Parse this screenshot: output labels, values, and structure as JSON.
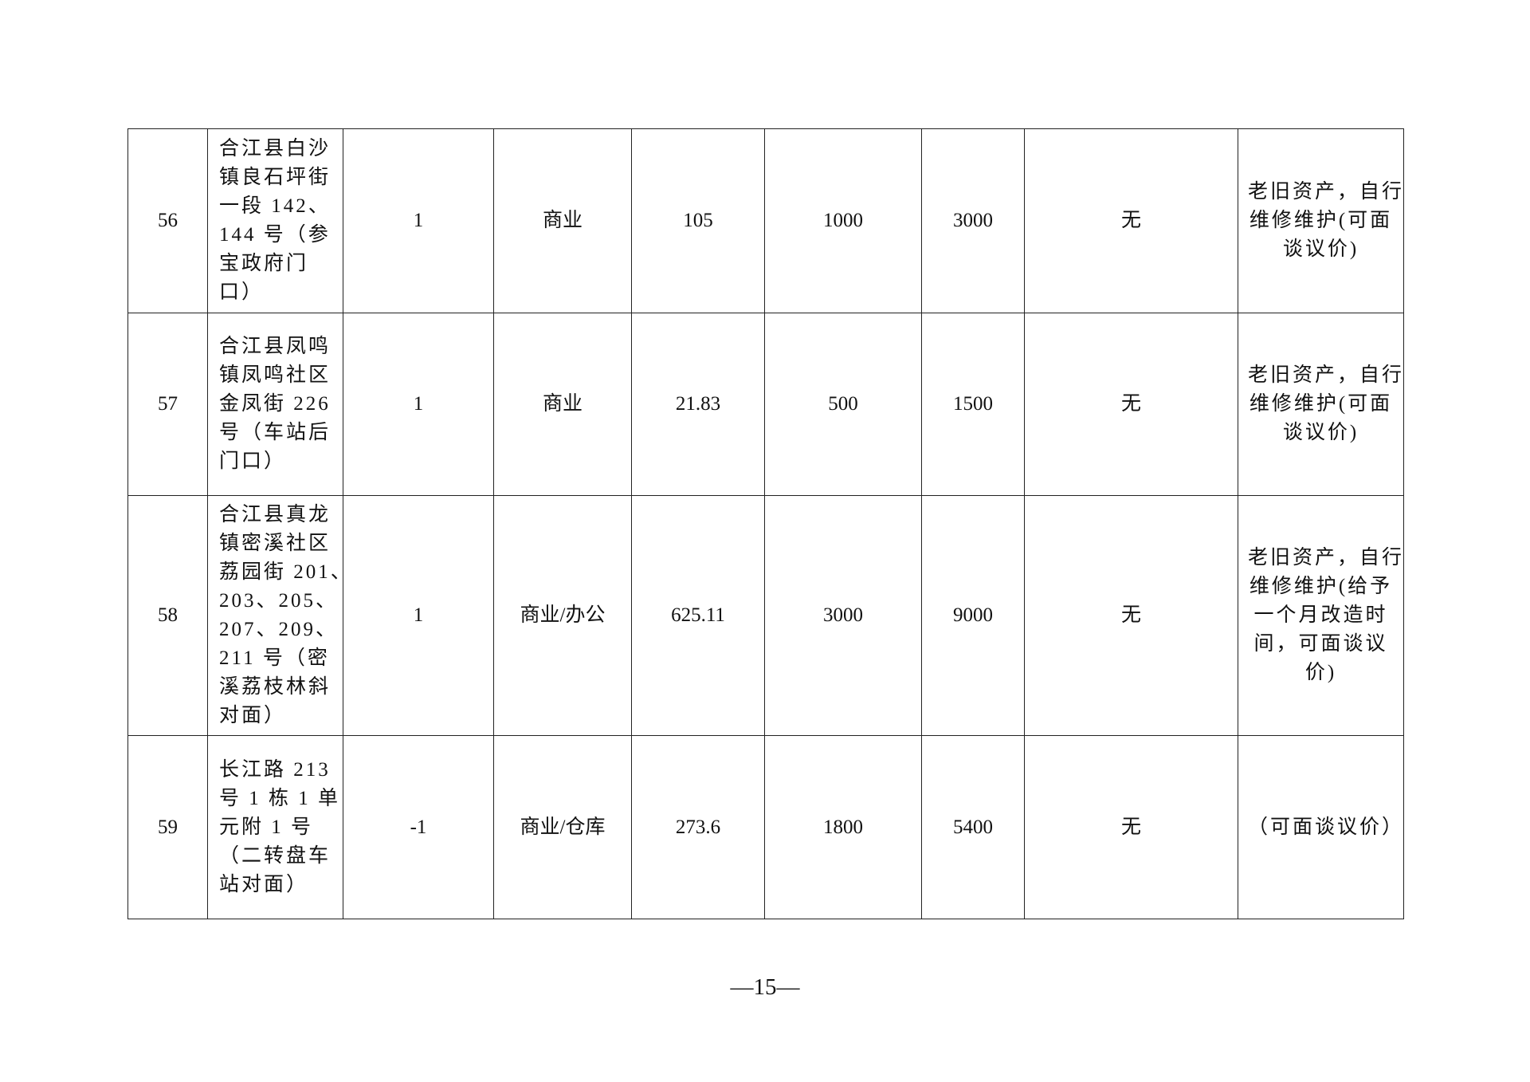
{
  "rows": [
    {
      "no": "56",
      "address_lines": [
        "合江县白沙",
        "镇良石坪街",
        "一段 142、",
        "144 号（参",
        "宝政府门",
        "口）"
      ],
      "floor": "1",
      "use": "商业",
      "area": "105",
      "monthly_rent": "1000",
      "deposit": "3000",
      "other": "无",
      "note_lines": [
        "老旧资产，自行",
        "维修维护(可面",
        "谈议价)"
      ]
    },
    {
      "no": "57",
      "address_lines": [
        "合江县凤鸣",
        "镇凤鸣社区",
        "金凤街 226",
        "号（车站后",
        "门口）"
      ],
      "floor": "1",
      "use": "商业",
      "area": "21.83",
      "monthly_rent": "500",
      "deposit": "1500",
      "other": "无",
      "note_lines": [
        "老旧资产，自行",
        "维修维护(可面",
        "谈议价)"
      ]
    },
    {
      "no": "58",
      "address_lines": [
        "合江县真龙",
        "镇密溪社区",
        "荔园街 201、",
        "203、205、",
        "207、209、",
        "211 号（密",
        "溪荔枝林斜",
        "对面）"
      ],
      "floor": "1",
      "use": "商业/办公",
      "area": "625.11",
      "monthly_rent": "3000",
      "deposit": "9000",
      "other": "无",
      "note_lines": [
        "老旧资产，自行",
        "维修维护(给予",
        "一个月改造时",
        "间，可面谈议",
        "价)"
      ]
    },
    {
      "no": "59",
      "address_lines": [
        "长江路 213",
        "号 1 栋 1 单",
        "元附 1 号",
        "（二转盘车",
        "站对面）"
      ],
      "floor": "-1",
      "use": "商业/仓库",
      "area": "273.6",
      "monthly_rent": "1800",
      "deposit": "5400",
      "other": "无",
      "note_lines": [
        "（可面谈议价）"
      ]
    }
  ],
  "page_number": "—15—"
}
